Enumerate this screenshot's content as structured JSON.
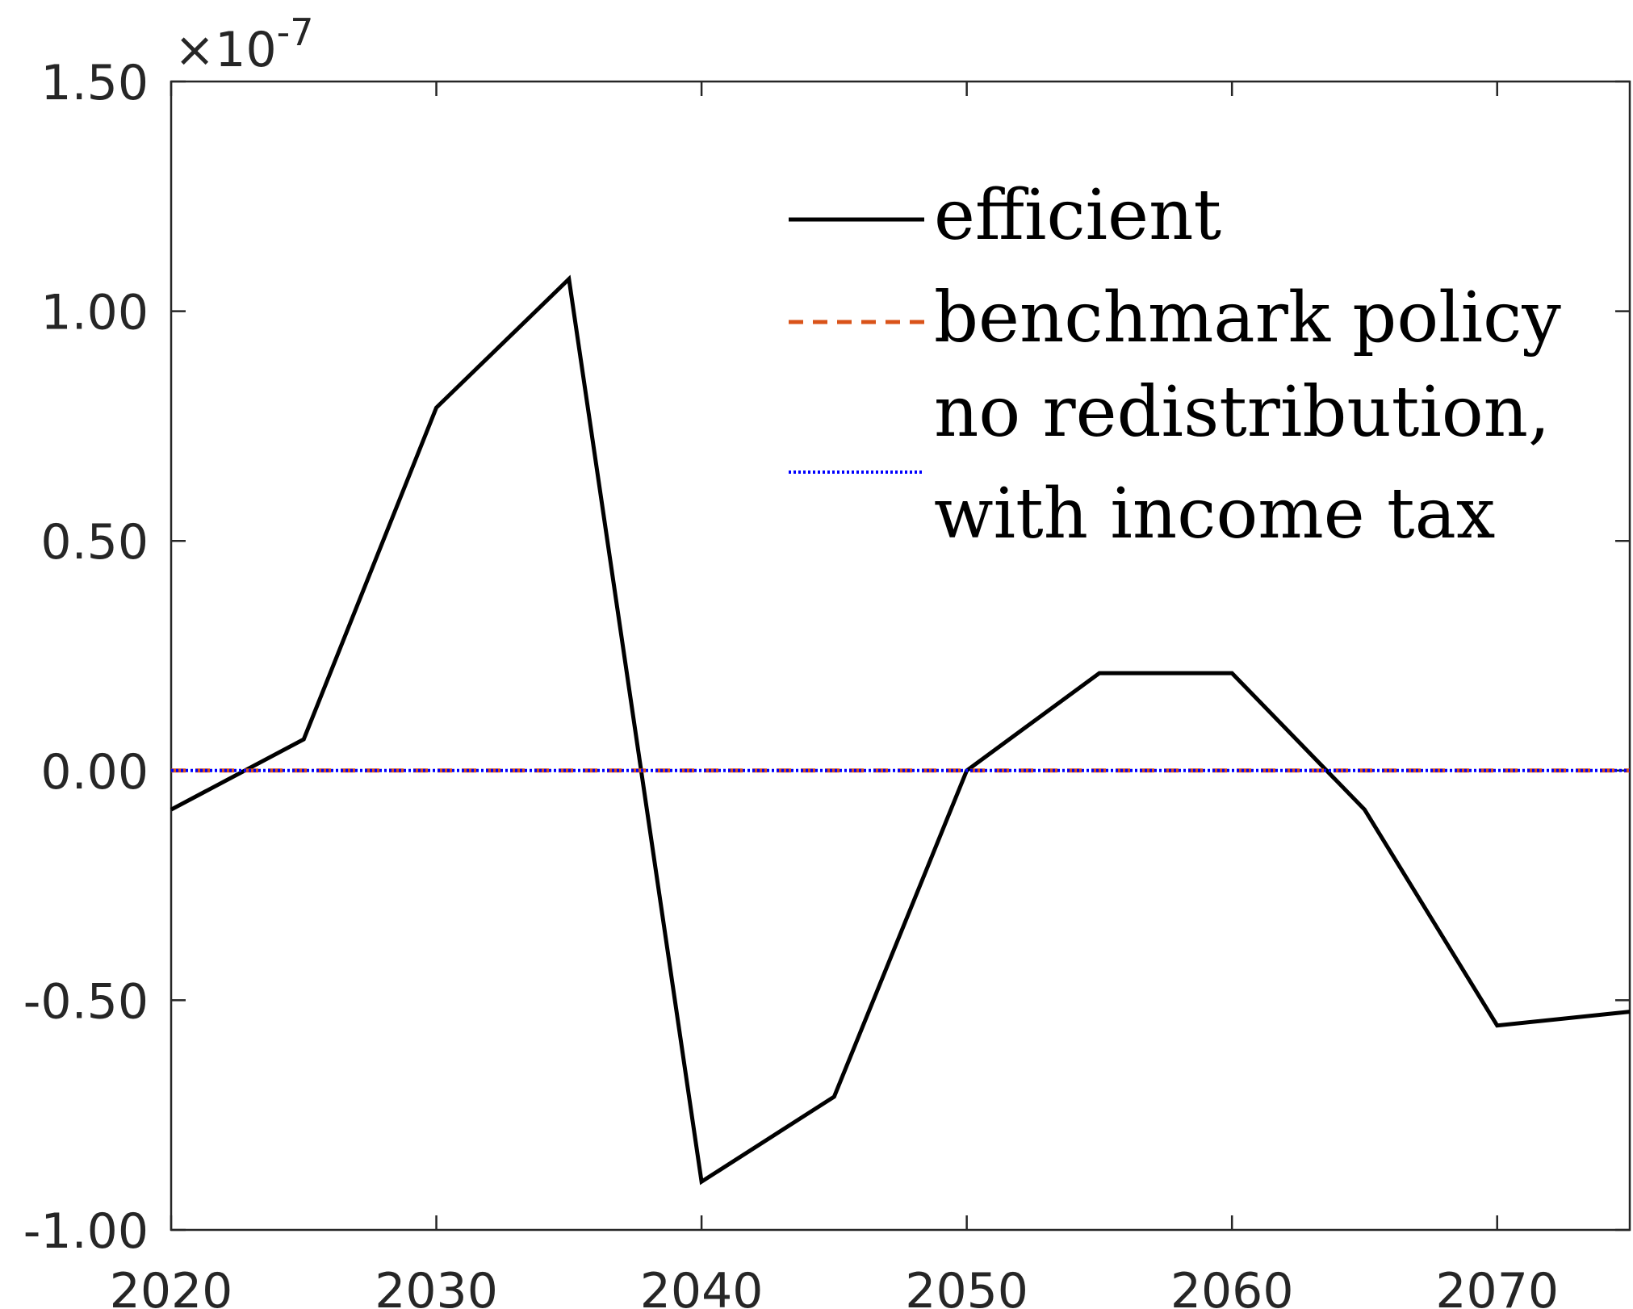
{
  "chart_data": {
    "type": "line",
    "title": "",
    "xlabel": "",
    "ylabel": "",
    "y_exponent_label": "×10-7",
    "y_exponent_base": "×10",
    "y_exponent_power": "-7",
    "xlim": [
      2020,
      2075
    ],
    "ylim": [
      -1.0,
      1.5
    ],
    "x_ticks": [
      2020,
      2030,
      2040,
      2050,
      2060,
      2070
    ],
    "x_tick_labels": [
      "2020",
      "2030",
      "2040",
      "2050",
      "2060",
      "2070"
    ],
    "y_ticks": [
      -1.0,
      -0.5,
      0.0,
      0.5,
      1.0,
      1.5
    ],
    "y_tick_labels": [
      "-1.00",
      "-0.50",
      "0.00",
      "0.50",
      "1.00",
      "1.50"
    ],
    "grid": false,
    "legend_position": "top-right",
    "series": [
      {
        "name": "efficient",
        "style": "solid",
        "color": "#000000",
        "x": [
          2020,
          2025,
          2030,
          2035,
          2040,
          2045,
          2050,
          2055,
          2060,
          2065,
          2070,
          2075
        ],
        "y": [
          -0.085,
          0.068,
          0.79,
          1.07,
          -0.895,
          -0.71,
          0.0,
          0.212,
          0.212,
          -0.085,
          -0.555,
          -0.525
        ]
      },
      {
        "name": "benchmark policy",
        "style": "dashed",
        "color": "#D95319",
        "x": [
          2020,
          2075
        ],
        "y": [
          0.0,
          0.0
        ]
      },
      {
        "name": "no redistribution, with income tax",
        "legend_lines": [
          "no redistribution,",
          "with income tax"
        ],
        "style": "dotted",
        "color": "#0000FF",
        "x": [
          2020,
          2075
        ],
        "y": [
          0.0,
          0.0
        ]
      }
    ]
  }
}
